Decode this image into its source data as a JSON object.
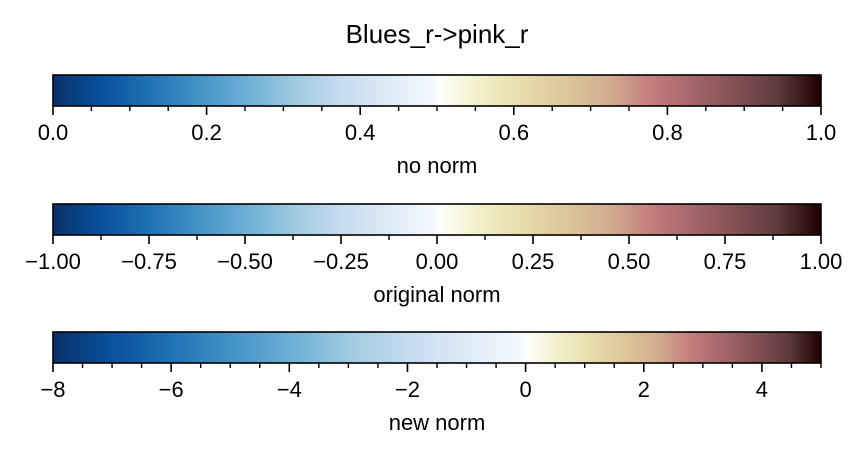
{
  "title": "Blues_r->pink_r",
  "chart_data": [
    {
      "type": "colorbar",
      "colormap_left": "Blues_r",
      "colormap_right": "pink_r",
      "range": [
        0.0,
        1.0
      ],
      "center": 0.5,
      "xlabel": "no norm",
      "major_ticks": [
        0.0,
        0.2,
        0.4,
        0.6,
        0.8,
        1.0
      ],
      "tick_labels": [
        "0.0",
        "0.2",
        "0.4",
        "0.6",
        "0.8",
        "1.0"
      ],
      "minor_ticks": [
        0.05,
        0.1,
        0.15,
        0.25,
        0.3,
        0.35,
        0.45,
        0.5,
        0.55,
        0.65,
        0.7,
        0.75,
        0.85,
        0.9,
        0.95
      ]
    },
    {
      "type": "colorbar",
      "colormap_left": "Blues_r",
      "colormap_right": "pink_r",
      "range": [
        -1.0,
        1.0
      ],
      "center": 0.0,
      "xlabel": "original norm",
      "major_ticks": [
        -1.0,
        -0.75,
        -0.5,
        -0.25,
        0.0,
        0.25,
        0.5,
        0.75,
        1.0
      ],
      "tick_labels": [
        "−1.00",
        "−0.75",
        "−0.50",
        "−0.25",
        "0.00",
        "0.25",
        "0.50",
        "0.75",
        "1.00"
      ],
      "minor_ticks": [
        -0.875,
        -0.625,
        -0.375,
        -0.125,
        0.125,
        0.375,
        0.625,
        0.875
      ]
    },
    {
      "type": "colorbar",
      "colormap_left": "Blues_r",
      "colormap_right": "pink_r",
      "range": [
        -8,
        5
      ],
      "center": 0,
      "xlabel": "new norm",
      "major_ticks": [
        -8,
        -6,
        -4,
        -2,
        0,
        2,
        4
      ],
      "tick_labels": [
        "−8",
        "−6",
        "−4",
        "−2",
        "0",
        "2",
        "4"
      ],
      "minor_ticks": [
        -7.5,
        -7,
        -6.5,
        -5.5,
        -5,
        -4.5,
        -3.5,
        -3,
        -2.5,
        -1.5,
        -1,
        -0.5,
        0.5,
        1,
        1.5,
        2.5,
        3,
        3.5,
        4.5,
        5
      ]
    }
  ]
}
